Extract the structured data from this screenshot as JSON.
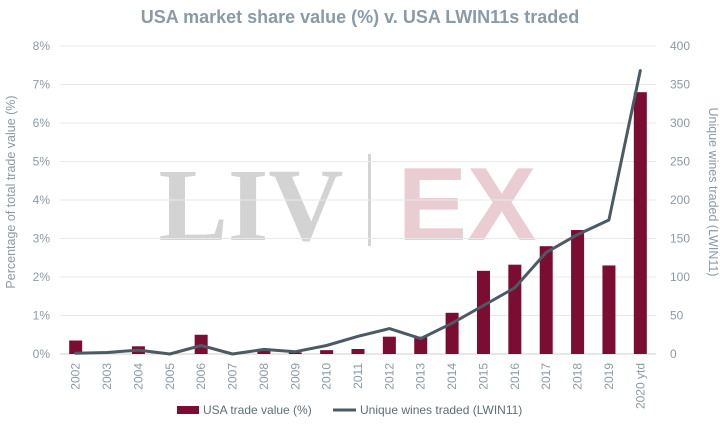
{
  "watermark": {
    "left": "LIV",
    "right": "EX",
    "left_color": "#c9c9c9",
    "right_color": "#e7c4cc"
  },
  "chart_data": {
    "type": "bar",
    "title": "USA market share value (%) v. USA LWIN11s traded",
    "categories": [
      "2002",
      "2003",
      "2004",
      "2005",
      "2006",
      "2007",
      "2008",
      "2009",
      "2010",
      "2011",
      "2012",
      "2013",
      "2014",
      "2015",
      "2016",
      "2017",
      "2018",
      "2019",
      "2020 ytd"
    ],
    "ylabel": "Percentage of total trade value (%)",
    "y2label": "Unique wines traded (LWIN11)",
    "ylim": [
      0,
      8
    ],
    "y2lim": [
      0,
      400
    ],
    "yticks": [
      "0%",
      "1%",
      "2%",
      "3%",
      "4%",
      "5%",
      "6%",
      "7%",
      "8%"
    ],
    "y2ticks": [
      "0",
      "50",
      "100",
      "150",
      "200",
      "250",
      "300",
      "350",
      "400"
    ],
    "grid": true,
    "legend_position": "bottom",
    "series": [
      {
        "name": "USA trade value (%)",
        "type": "bar",
        "axis": "left",
        "color": "#7b0c32",
        "values": [
          0.35,
          0.0,
          0.2,
          0.0,
          0.5,
          0.0,
          0.1,
          0.04,
          0.1,
          0.13,
          0.45,
          0.45,
          1.07,
          2.16,
          2.32,
          2.8,
          3.22,
          2.3,
          6.8
        ]
      },
      {
        "name": "Unique wines traded (LWIN11)",
        "type": "line",
        "axis": "right",
        "color": "#4c5a64",
        "values": [
          1,
          2,
          5,
          0,
          11,
          0,
          6,
          3,
          11,
          23,
          33,
          20,
          40,
          63,
          86,
          132,
          155,
          174,
          368
        ]
      }
    ]
  }
}
